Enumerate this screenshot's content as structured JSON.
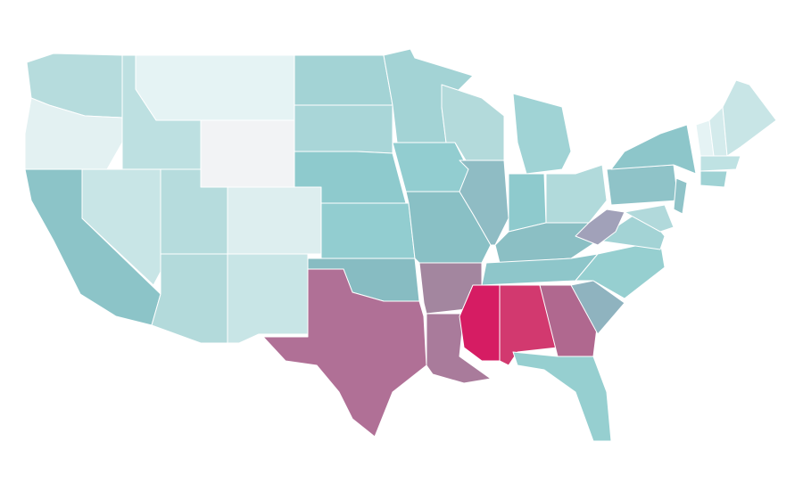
{
  "map": {
    "fills": [
      "#b6dcdd",
      "#e3f1f2",
      "#8cc4c8",
      "#c8e5e6",
      "#bde0e1",
      "#e5f3f4",
      "#f2f3f5",
      "#b6dcdd",
      "#ddeeef",
      "#b3dadb",
      "#c8e5e6",
      "#a3d3d5",
      "#a9d6d8",
      "#8ecacd",
      "#92cdd0",
      "#87bcc2",
      "#b07096",
      "#a3d3d5",
      "#92cdd0",
      "#89c0c5",
      "#a3869f",
      "#a97b9b",
      "#b3dadb",
      "#8fbcc4",
      "#a0d3d5",
      "#8ecacd",
      "#b1dadb",
      "#8bbfc4",
      "#8ec6ca",
      "#d61c63",
      "#d2396f",
      "#b0688f",
      "#96cfd0",
      "#8fb3bf",
      "#96cfd0",
      "#a3d3d5",
      "#a1a1b9",
      "#8fc3c8",
      "#8dc6ca",
      "#b1d9db",
      "#8fc3c8",
      "#e5f3f4",
      "#d4ebec",
      "#c8e5e6",
      "#bfe2e3",
      "#9fd2d4"
    ]
  }
}
